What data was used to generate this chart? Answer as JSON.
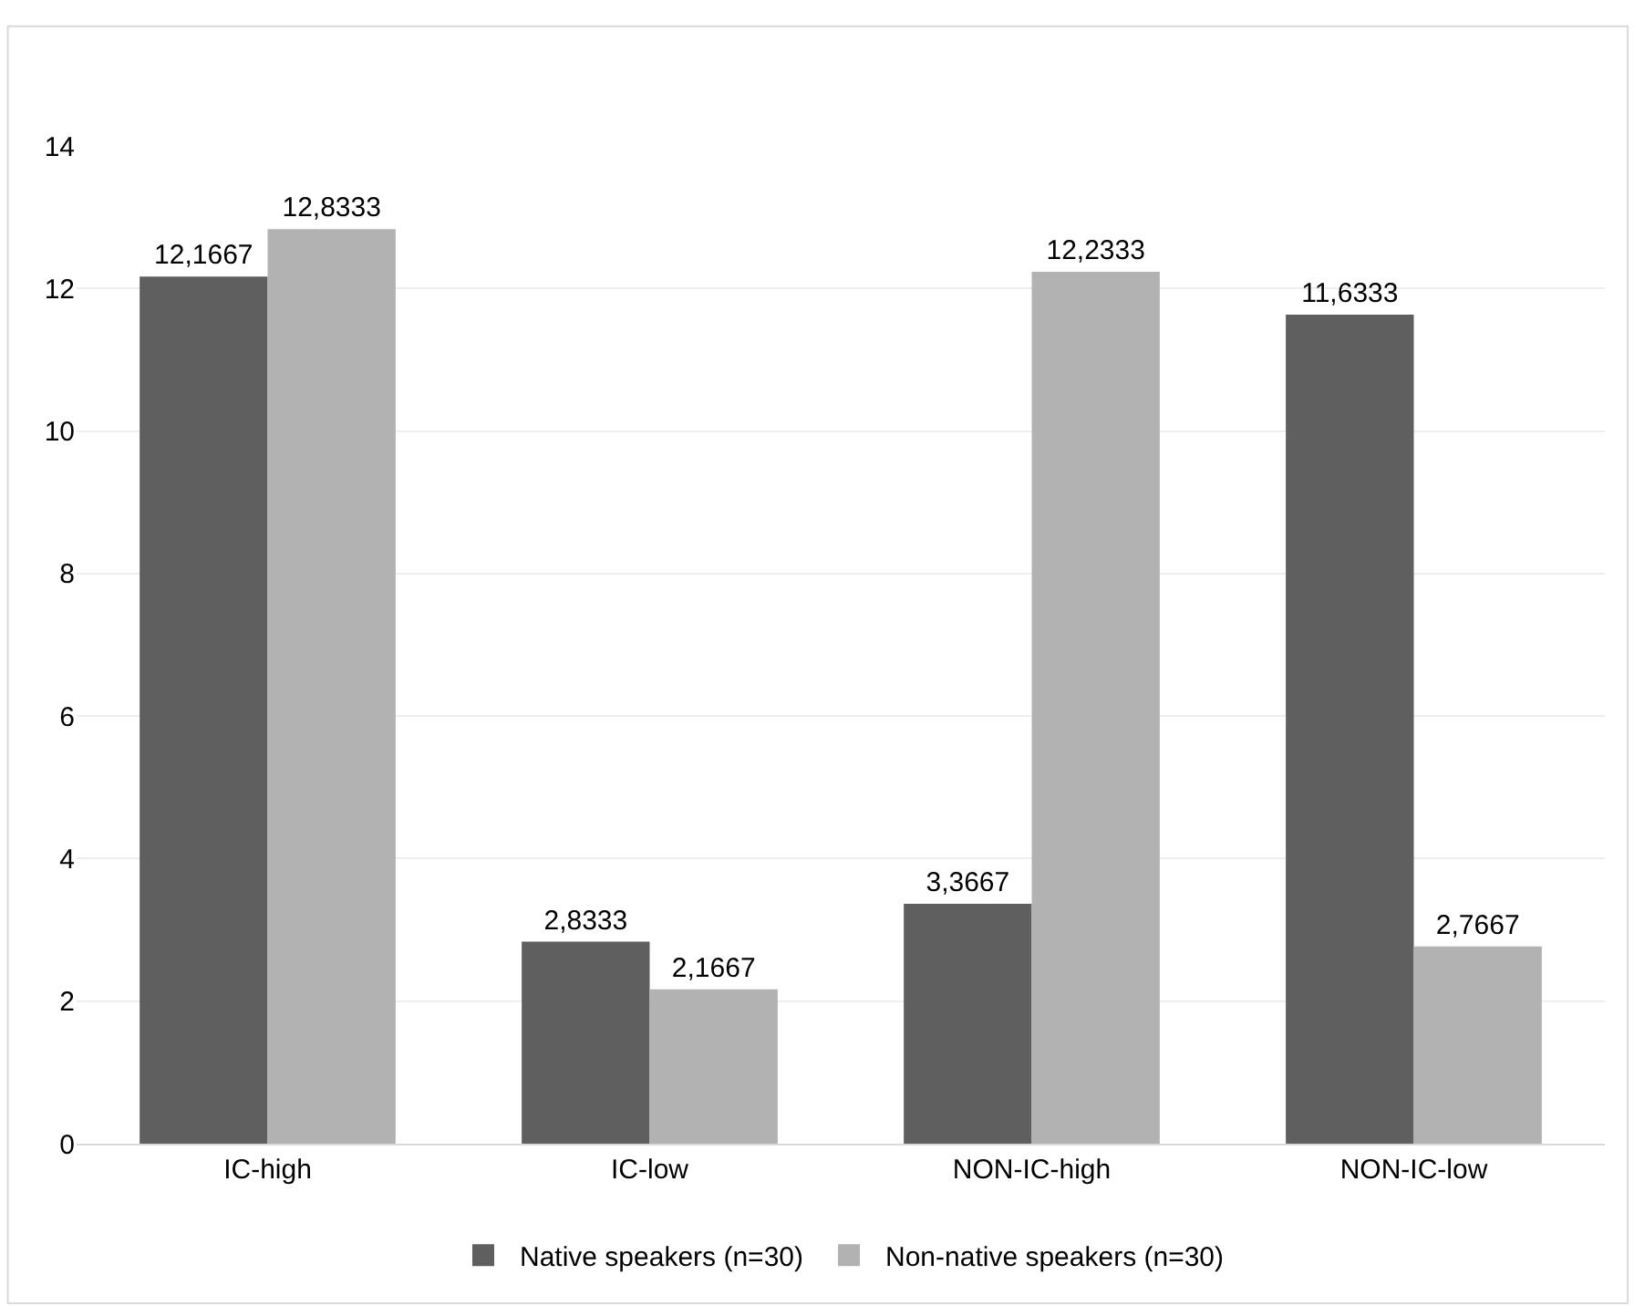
{
  "chart_data": {
    "type": "bar",
    "categories": [
      "IC-high",
      "IC-low",
      "NON-IC-high",
      "NON-IC-low"
    ],
    "series": [
      {
        "name": "Native speakers (n=30)",
        "color": "#5f5f5f",
        "values": [
          12.1667,
          2.8333,
          3.3667,
          11.6333
        ],
        "value_labels": [
          "12,1667",
          "2,8333",
          "3,3667",
          "11,6333"
        ]
      },
      {
        "name": "Non-native speakers (n=30)",
        "color": "#b2b2b2",
        "values": [
          12.8333,
          2.1667,
          12.2333,
          2.7667
        ],
        "value_labels": [
          "12,8333",
          "2,1667",
          "12,2333",
          "2,7667"
        ]
      }
    ],
    "ylim": [
      0,
      14
    ],
    "yticks": [
      0,
      2,
      4,
      6,
      8,
      10,
      12,
      14
    ],
    "grid": "y",
    "legend": "bottom"
  }
}
